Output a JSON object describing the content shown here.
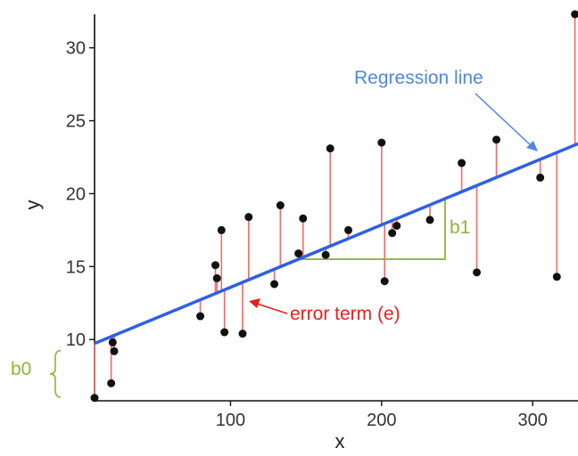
{
  "chart_data": {
    "type": "scatter",
    "xlabel": "x",
    "ylabel": "y",
    "xlim": [
      10,
      330
    ],
    "ylim": [
      5.8,
      32.3
    ],
    "x_ticks": [
      "100",
      "200",
      "300"
    ],
    "y_ticks": [
      "10",
      "15",
      "20",
      "25",
      "30"
    ],
    "x_tick_values": [
      100,
      200,
      300
    ],
    "y_tick_values": [
      10,
      15,
      20,
      25,
      30
    ],
    "grid": false,
    "points": [
      {
        "x": 10,
        "y": 6.0
      },
      {
        "x": 21,
        "y": 7.0
      },
      {
        "x": 22,
        "y": 9.8
      },
      {
        "x": 23,
        "y": 9.2
      },
      {
        "x": 80,
        "y": 11.6
      },
      {
        "x": 90,
        "y": 15.1
      },
      {
        "x": 91,
        "y": 14.2
      },
      {
        "x": 94,
        "y": 17.5
      },
      {
        "x": 96,
        "y": 10.5
      },
      {
        "x": 108,
        "y": 10.4
      },
      {
        "x": 112,
        "y": 18.4
      },
      {
        "x": 129,
        "y": 13.8
      },
      {
        "x": 133,
        "y": 19.2
      },
      {
        "x": 145,
        "y": 15.9
      },
      {
        "x": 148,
        "y": 18.3
      },
      {
        "x": 163,
        "y": 15.8
      },
      {
        "x": 166,
        "y": 23.1
      },
      {
        "x": 178,
        "y": 17.5
      },
      {
        "x": 200,
        "y": 23.5
      },
      {
        "x": 202,
        "y": 14.0
      },
      {
        "x": 207,
        "y": 17.3
      },
      {
        "x": 210,
        "y": 17.8
      },
      {
        "x": 232,
        "y": 18.2
      },
      {
        "x": 253,
        "y": 22.1
      },
      {
        "x": 263,
        "y": 14.6
      },
      {
        "x": 276,
        "y": 23.7
      },
      {
        "x": 305,
        "y": 21.1
      },
      {
        "x": 316,
        "y": 14.3
      },
      {
        "x": 328,
        "y": 32.3
      }
    ],
    "regression": {
      "intercept": 9.3,
      "slope": 0.0428
    },
    "annotations": {
      "regression_label": "Regression line",
      "error_label": "error term (e)",
      "slope_label": "b1",
      "intercept_label": "b0"
    },
    "colors": {
      "line": "#2e5fe6",
      "residual": "#f26b6b",
      "points": "#111111",
      "regression_text": "#4f87e0",
      "error_text": "#e8201c",
      "slope": "#8fb437"
    }
  }
}
